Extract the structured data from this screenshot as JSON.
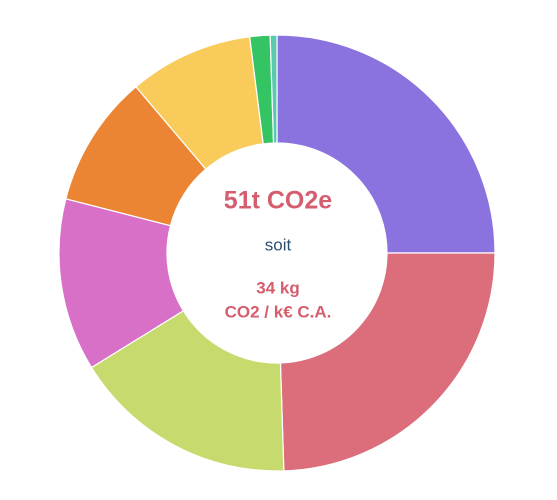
{
  "chart_data": {
    "type": "donut",
    "values": [
      25,
      24.5,
      16.7,
      12.8,
      9.8,
      9.2,
      1.5,
      0.5
    ],
    "colors": [
      "#8a73de",
      "#db6e7a",
      "#c6da6e",
      "#d970c7",
      "#ec8533",
      "#f8cb5a",
      "#34c463",
      "#59c9b0"
    ],
    "center_text": {
      "title": "51t CO2e",
      "connector": "soit",
      "line1": "34 kg",
      "line2": "CO2 / k€ C.A."
    }
  }
}
